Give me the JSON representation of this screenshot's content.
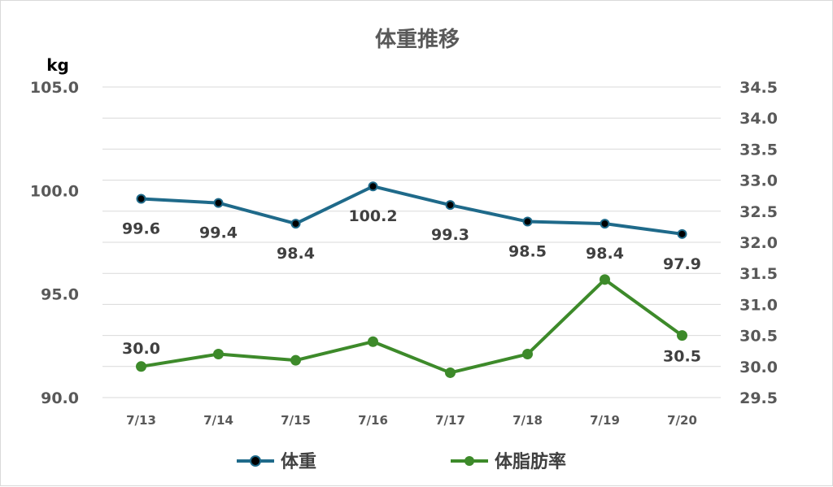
{
  "chart_data": {
    "type": "line",
    "title": "体重推移",
    "categories": [
      "7/13",
      "7/14",
      "7/15",
      "7/16",
      "7/17",
      "7/18",
      "7/19",
      "7/20"
    ],
    "y_left": {
      "unit_label": "kg",
      "ylim": [
        90.0,
        105.0
      ],
      "ticks": [
        "90.0",
        "95.0",
        "100.0",
        "105.0"
      ],
      "tick_values": [
        90,
        95,
        100,
        105
      ]
    },
    "y_right": {
      "ylim": [
        29.5,
        34.5
      ],
      "ticks": [
        "29.5",
        "30.0",
        "30.5",
        "31.0",
        "31.5",
        "32.0",
        "32.5",
        "33.0",
        "33.5",
        "34.0",
        "34.5"
      ],
      "tick_values": [
        29.5,
        30,
        30.5,
        31,
        31.5,
        32,
        32.5,
        33,
        33.5,
        34,
        34.5
      ]
    },
    "grid": true,
    "legend_position": "bottom",
    "series": [
      {
        "name": "体重",
        "axis": "left",
        "color": "#1f6a8a",
        "values": [
          99.6,
          99.4,
          98.4,
          100.2,
          99.3,
          98.5,
          98.4,
          97.9
        ],
        "data_labels": [
          "99.6",
          "99.4",
          "98.4",
          "100.2",
          "99.3",
          "98.5",
          "98.4",
          "97.9"
        ]
      },
      {
        "name": "体脂肪率",
        "axis": "right",
        "color": "#3d8a2a",
        "values": [
          30.0,
          30.2,
          30.1,
          30.4,
          29.9,
          30.2,
          31.4,
          30.5
        ],
        "data_labels": [
          "30.0",
          "",
          "",
          "",
          "",
          "",
          "",
          "30.5"
        ]
      }
    ]
  }
}
